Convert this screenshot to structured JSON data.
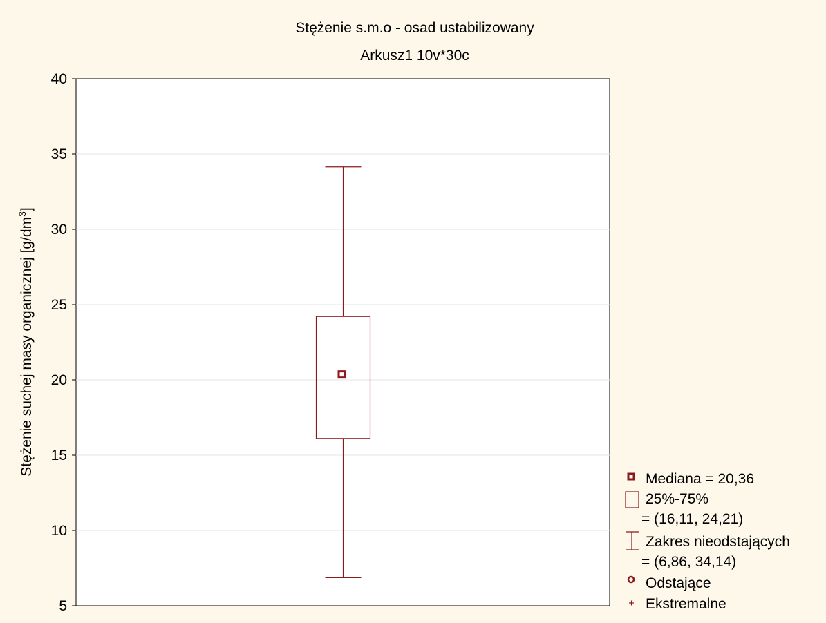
{
  "chart_data": {
    "type": "boxplot",
    "title": "Stężenie s.m.o - osad ustabilizowany",
    "subtitle": "Arkusz1 10v*30c",
    "ylabel": "Stężenie suchej masy organicznej [g/dm",
    "ylabel_superscript": "3",
    "ylabel_suffix": "]",
    "ylim": [
      5,
      40
    ],
    "yticks": [
      "5",
      "10",
      "15",
      "20",
      "25",
      "30",
      "35",
      "40"
    ],
    "ytick_values": [
      5,
      10,
      15,
      20,
      25,
      30,
      35,
      40
    ],
    "grid": true,
    "legend_position": "right",
    "stats": {
      "median": 20.36,
      "q1": 16.11,
      "q3": 24.21,
      "whisker_low": 6.86,
      "whisker_high": 34.14
    },
    "legend": {
      "median": "Mediana = 20,36",
      "box": "25%-75%",
      "box_values": "= (16,11, 24,21)",
      "whisker": "Zakres nieodstających",
      "whisker_values": "= (6,86, 34,14)",
      "outliers": "Odstające",
      "extremes": "Ekstremalne"
    },
    "colors": {
      "series": "#8b1a1a",
      "background": "#fdf8ea",
      "plot": "#ffffff",
      "grid": "#e6e6e6"
    }
  }
}
